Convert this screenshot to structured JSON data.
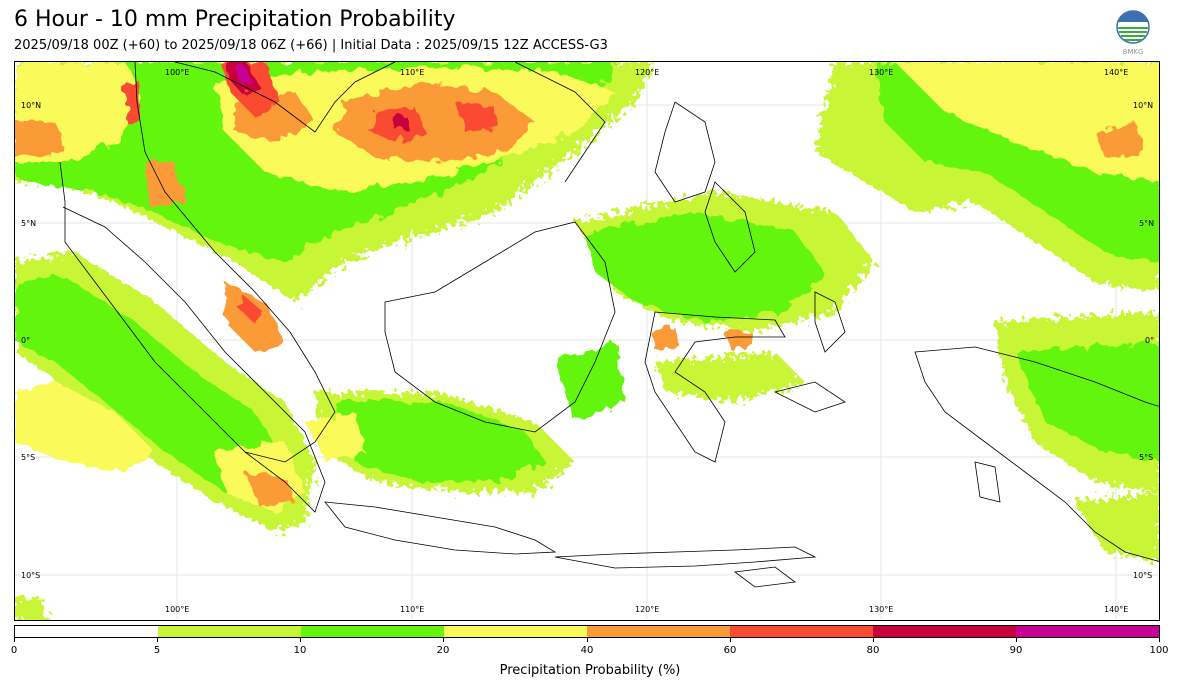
{
  "header": {
    "title": "6 Hour - 10 mm Precipitation Probability",
    "subtitle": "2025/09/18 00Z (+60) to 2025/09/18 06Z (+66) | Initial Data : 2025/09/15 12Z ACCESS-G3",
    "logo_text": "BMKG"
  },
  "map": {
    "lon_labels": [
      "100°E",
      "110°E",
      "120°E",
      "130°E",
      "140°E"
    ],
    "lat_labels": [
      "10°N",
      "5°N",
      "0°",
      "5°S",
      "10°S"
    ],
    "extent": {
      "lon_min": 93,
      "lon_max": 142,
      "lat_min": -12,
      "lat_max": 12
    }
  },
  "colorbar": {
    "ticks": [
      "0",
      "5",
      "10",
      "20",
      "40",
      "60",
      "80",
      "90",
      "100"
    ],
    "colors": [
      "#ffffff",
      "#c8f535",
      "#64f50a",
      "#fafa5a",
      "#fa9b37",
      "#fa4b32",
      "#c8003c",
      "#c80096"
    ],
    "label": "Precipitation Probability (%)"
  },
  "colors": {
    "light_green": "#c8f535",
    "green": "#64f50a",
    "yellow": "#fafa5a",
    "orange": "#fa9b37",
    "red": "#fa4b32",
    "crimson": "#c8003c",
    "magenta": "#c80096"
  }
}
